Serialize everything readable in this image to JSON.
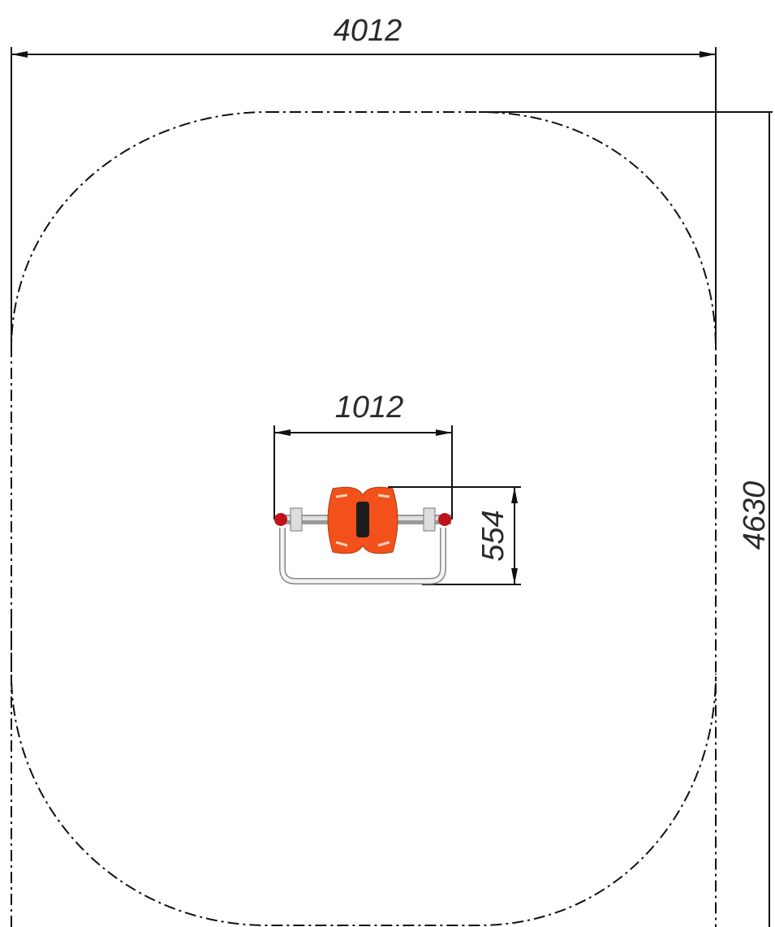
{
  "dimensions": {
    "zone_width": 4012,
    "equipment_width": 1012,
    "equipment_depth": 554,
    "zone_length": 4630
  }
}
